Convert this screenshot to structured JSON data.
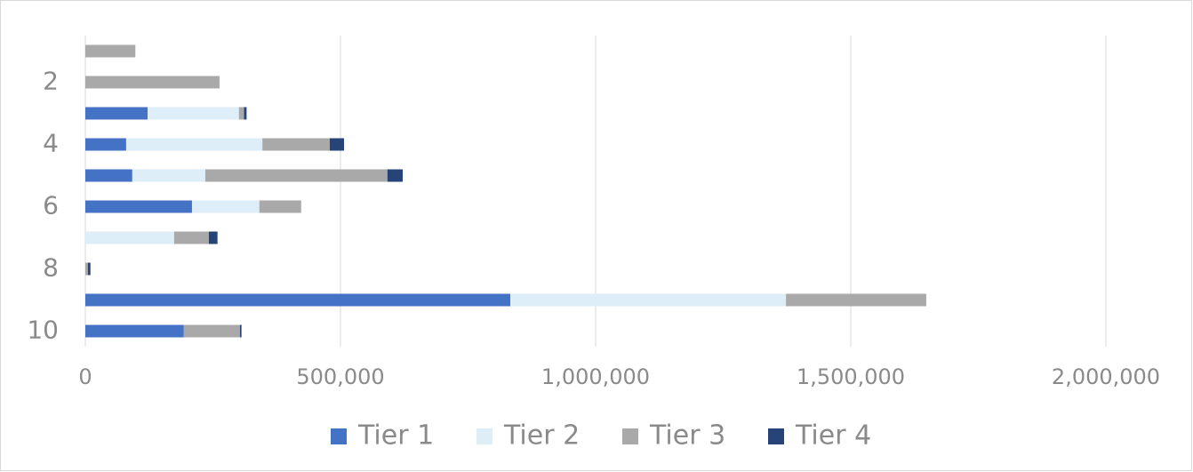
{
  "chart_data": {
    "type": "stacked-bar-horizontal",
    "categories": [
      null,
      "2",
      null,
      "4",
      null,
      "6",
      null,
      "8",
      null,
      "10"
    ],
    "series": [
      {
        "name": "Tier 1",
        "color": "#4472c4",
        "values": [
          0,
          0,
          122000,
          80000,
          92000,
          209000,
          0,
          0,
          833000,
          193000
        ]
      },
      {
        "name": "Tier 2",
        "color": "#ddeef9",
        "values": [
          0,
          0,
          179000,
          267000,
          143000,
          132000,
          174000,
          0,
          540000,
          0
        ]
      },
      {
        "name": "Tier 3",
        "color": "#a9a9a9",
        "values": [
          98000,
          263000,
          10000,
          132000,
          357000,
          82000,
          68000,
          5000,
          275000,
          110000
        ]
      },
      {
        "name": "Tier 4",
        "color": "#264478",
        "values": [
          0,
          0,
          5000,
          28000,
          30000,
          0,
          17000,
          5000,
          0,
          3000
        ]
      }
    ],
    "xlim": [
      0,
      2000000
    ],
    "xticks": [
      0,
      {
        "value": 500000,
        "label": "500,000"
      },
      {
        "value": 1000000,
        "label": "1,000,000"
      },
      {
        "value": 1500000,
        "label": "1,500,000"
      },
      {
        "value": 2000000,
        "label": "2,000,000"
      }
    ],
    "grid": true,
    "legend": "bottom"
  }
}
